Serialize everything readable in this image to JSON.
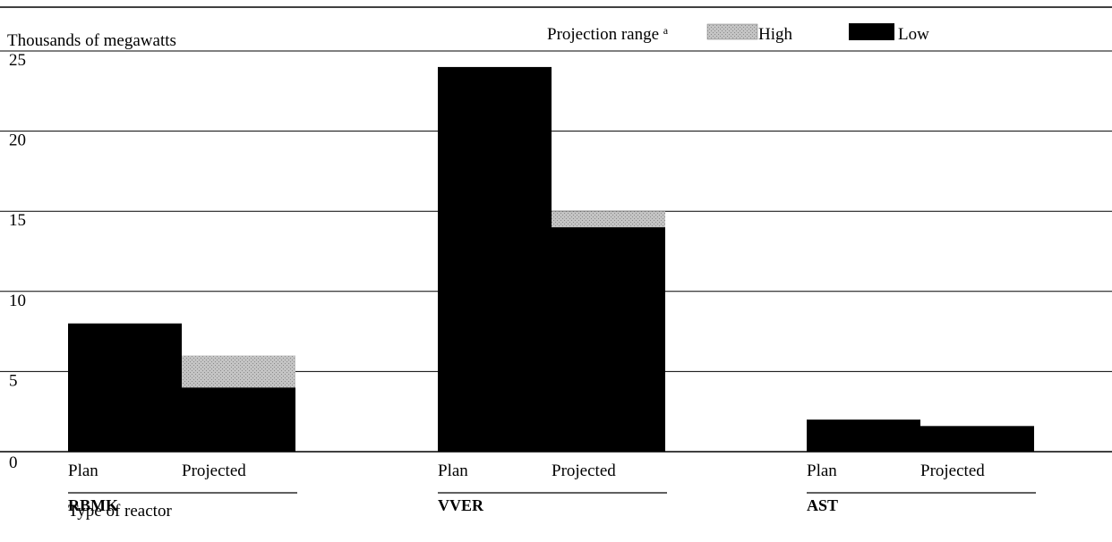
{
  "chart_data": {
    "type": "bar",
    "ylabel": "Thousands of megawatts",
    "xlabel": "Type of reactor",
    "ylim": [
      0,
      25
    ],
    "yticks": [
      "0",
      "5",
      "10",
      "15",
      "20",
      "25"
    ],
    "legend": {
      "title": "Projection range",
      "title_footnote": "a",
      "placement": "top-right",
      "items": [
        {
          "key": "high",
          "label": "High",
          "color": "#b8b8b8"
        },
        {
          "key": "low",
          "label": "Low",
          "color": "#000000"
        }
      ]
    },
    "groups": [
      {
        "name": "RBMK",
        "bars": [
          {
            "label": "Plan",
            "low": 8
          },
          {
            "label": "Projected",
            "low": 4,
            "high": 6
          }
        ]
      },
      {
        "name": "VVER",
        "bars": [
          {
            "label": "Plan",
            "low": 24
          },
          {
            "label": "Projected",
            "low": 14,
            "high": 15
          }
        ]
      },
      {
        "name": "AST",
        "bars": [
          {
            "label": "Plan",
            "low": 2
          },
          {
            "label": "Projected",
            "low": 1.6
          }
        ]
      }
    ]
  }
}
